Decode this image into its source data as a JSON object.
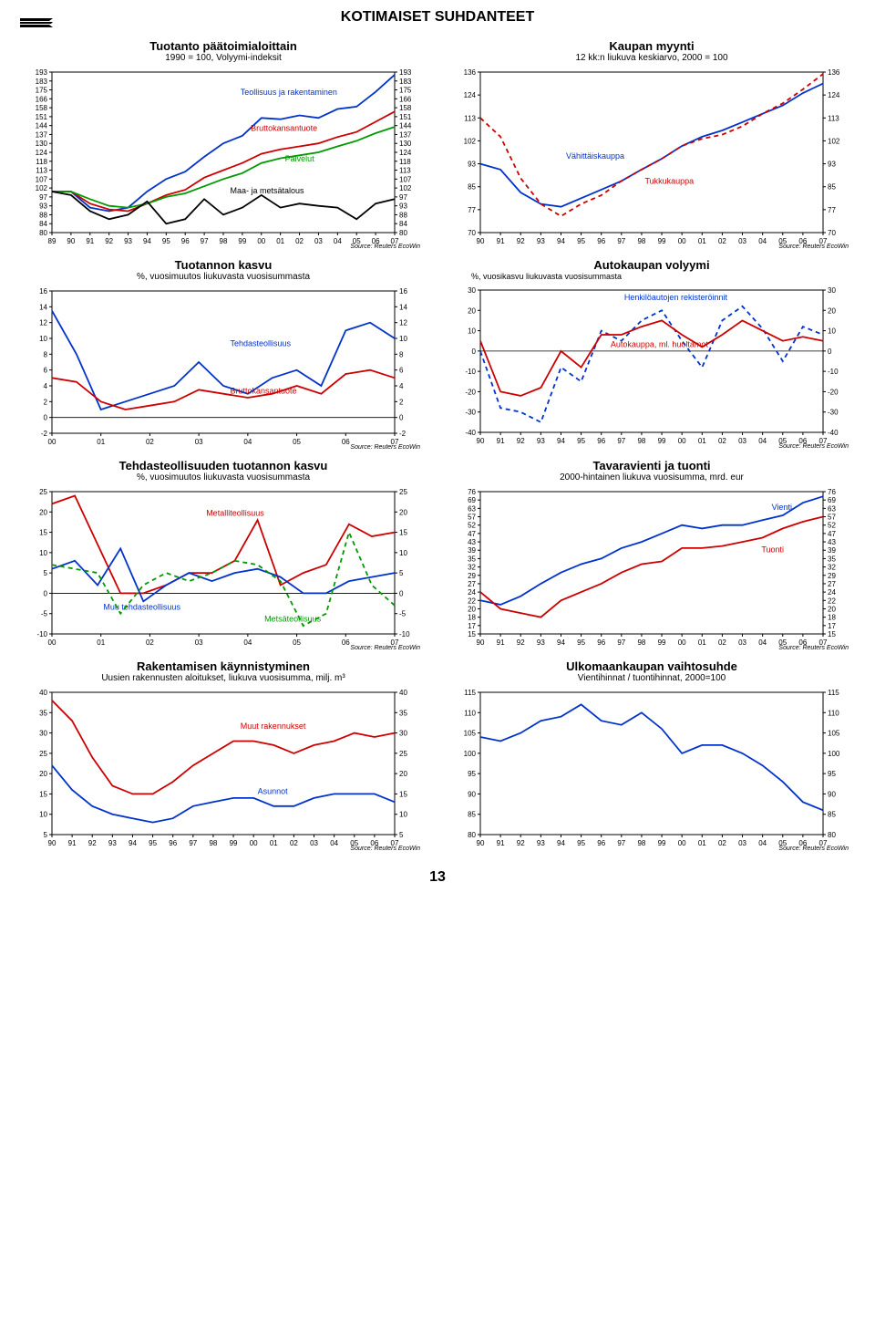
{
  "page_title": "KOTIMAISET SUHDANTEET",
  "page_number": "13",
  "source_text": "Source: Reuters EcoWin",
  "colors": {
    "blue": "#0033cc",
    "red": "#cc0000",
    "green": "#009900",
    "black": "#000000",
    "grid": "#000000",
    "bg": "#ffffff"
  },
  "charts": [
    {
      "id": "tuotanto",
      "title": "Tuotanto päätoimialoittain",
      "subtitle": "1990 = 100, Volyymi-indeksit",
      "x_years": [
        "89",
        "90",
        "91",
        "92",
        "93",
        "94",
        "95",
        "96",
        "97",
        "98",
        "99",
        "00",
        "01",
        "02",
        "03",
        "04",
        "05",
        "06",
        "07"
      ],
      "y_ticks": [
        80,
        84,
        88,
        93,
        97,
        102,
        107,
        113,
        118,
        124,
        130,
        137,
        144,
        151,
        158,
        166,
        175,
        183,
        193
      ],
      "ylim": [
        80,
        193
      ],
      "series": [
        {
          "label": "Teollisuus ja rakentaminen",
          "color": "#0033cc",
          "lx": 0.55,
          "ly": 170,
          "data": [
            100,
            100,
            92,
            90,
            92,
            100,
            107,
            112,
            121,
            130,
            136,
            150,
            149,
            152,
            150,
            157,
            159,
            173,
            190
          ]
        },
        {
          "label": "Bruttokansantuote",
          "color": "#cc0000",
          "lx": 0.58,
          "ly": 140,
          "data": [
            100,
            100,
            94,
            91,
            90,
            94,
            98,
            101,
            108,
            113,
            117,
            123,
            126,
            128,
            130,
            135,
            139,
            147,
            155
          ]
        },
        {
          "label": "Palvelut",
          "color": "#009900",
          "lx": 0.68,
          "ly": 118,
          "data": [
            100,
            100,
            96,
            93,
            92,
            94,
            97,
            99,
            103,
            107,
            111,
            117,
            120,
            122,
            124,
            128,
            132,
            138,
            143
          ]
        },
        {
          "label": "Maa- ja metsätalous",
          "color": "#000000",
          "lx": 0.52,
          "ly": 99,
          "data": [
            100,
            98,
            90,
            86,
            88,
            95,
            84,
            86,
            96,
            88,
            92,
            98,
            92,
            94,
            93,
            92,
            86,
            94,
            96
          ]
        }
      ]
    },
    {
      "id": "kaupan",
      "title": "Kaupan myynti",
      "subtitle": "12 kk:n liukuva keskiarvo, 2000 = 100",
      "x_years": [
        "90",
        "91",
        "92",
        "93",
        "94",
        "95",
        "96",
        "97",
        "98",
        "99",
        "00",
        "01",
        "02",
        "03",
        "04",
        "05",
        "06",
        "07"
      ],
      "y_ticks": [
        70,
        77,
        85,
        93,
        102,
        113,
        124,
        136
      ],
      "ylim": [
        70,
        136
      ],
      "series": [
        {
          "label": "Vähittäiskauppa",
          "color": "#0033cc",
          "lx": 0.25,
          "ly": 95,
          "data": [
            93,
            91,
            83,
            79,
            78,
            81,
            84,
            87,
            91,
            95,
            100,
            104,
            107,
            111,
            115,
            119,
            125,
            130
          ]
        },
        {
          "label": "Tukkukauppa",
          "color": "#cc0000",
          "lx": 0.48,
          "ly": 86,
          "dashed": true,
          "data": [
            113,
            104,
            88,
            79,
            75,
            79,
            82,
            87,
            91,
            95,
            100,
            103,
            105,
            109,
            115,
            120,
            127,
            135
          ]
        }
      ]
    },
    {
      "id": "kasvu",
      "title": "Tuotannon kasvu",
      "subtitle": "%, vuosimuutos liukuvasta vuosisummasta",
      "x_years": [
        "00",
        "01",
        "02",
        "03",
        "04",
        "05",
        "06",
        "07"
      ],
      "y_ticks": [
        -2,
        0,
        2,
        4,
        6,
        8,
        10,
        12,
        14,
        16
      ],
      "ylim": [
        -2,
        16
      ],
      "series": [
        {
          "label": "Tehdasteollisuus",
          "color": "#0033cc",
          "lx": 0.52,
          "ly": 9,
          "data": [
            13.5,
            8,
            1,
            2,
            3,
            4,
            7,
            4,
            3,
            5,
            6,
            4,
            11,
            12,
            10
          ]
        },
        {
          "label": "Bruttokansantuote",
          "color": "#cc0000",
          "lx": 0.52,
          "ly": 3,
          "data": [
            5,
            4.5,
            2,
            1,
            1.5,
            2,
            3.5,
            3,
            2.5,
            3,
            4,
            3,
            5.5,
            6,
            5
          ]
        }
      ]
    },
    {
      "id": "autokaupan",
      "title": "Autokaupan volyymi",
      "subtitle": "%, vuosikasvu liukuvasta vuosisummasta",
      "sub_pos": "left",
      "x_years": [
        "90",
        "91",
        "92",
        "93",
        "94",
        "95",
        "96",
        "97",
        "98",
        "99",
        "00",
        "01",
        "02",
        "03",
        "04",
        "05",
        "06",
        "07"
      ],
      "y_ticks": [
        -40,
        -30,
        -20,
        -10,
        0,
        10,
        20,
        30
      ],
      "ylim": [
        -40,
        30
      ],
      "series": [
        {
          "label": "Henkilöautojen rekisteröinnit",
          "color": "#0033cc",
          "lx": 0.42,
          "ly": 25,
          "dashed": true,
          "data": [
            0,
            -28,
            -30,
            -35,
            -8,
            -15,
            10,
            5,
            15,
            20,
            5,
            -8,
            15,
            22,
            11,
            -5,
            12,
            8
          ]
        },
        {
          "label": "Autokauppa, ml. huoltamot",
          "color": "#cc0000",
          "lx": 0.38,
          "ly": 2,
          "data": [
            5,
            -20,
            -22,
            -18,
            0,
            -8,
            8,
            8,
            12,
            15,
            8,
            2,
            8,
            15,
            10,
            5,
            7,
            5
          ]
        }
      ]
    },
    {
      "id": "tehdas",
      "title": "Tehdasteollisuuden tuotannon kasvu",
      "subtitle": "%, vuosimuutos liukuvasta vuosisummasta",
      "x_years": [
        "00",
        "01",
        "02",
        "03",
        "04",
        "05",
        "06",
        "07"
      ],
      "y_ticks": [
        -10,
        -5,
        0,
        5,
        10,
        15,
        20,
        25
      ],
      "ylim": [
        -10,
        25
      ],
      "series": [
        {
          "label": "Metalliteollisuus",
          "color": "#cc0000",
          "lx": 0.45,
          "ly": 19,
          "data": [
            22,
            24,
            12,
            0,
            0,
            2,
            5,
            5,
            8,
            18,
            2,
            5,
            7,
            17,
            14,
            15
          ]
        },
        {
          "label": "Muu tehdasteollisuus",
          "color": "#0033cc",
          "lx": 0.15,
          "ly": -4,
          "data": [
            6,
            8,
            2,
            11,
            -2,
            2,
            5,
            3,
            5,
            6,
            4,
            0,
            0,
            3,
            4,
            5
          ]
        },
        {
          "label": "Metsäteollisuus",
          "color": "#009900",
          "lx": 0.62,
          "ly": -7,
          "dashed": true,
          "data": [
            7,
            6,
            5,
            -5,
            2,
            5,
            3,
            5,
            8,
            7,
            3,
            -8,
            -5,
            15,
            2,
            -3
          ]
        }
      ]
    },
    {
      "id": "tavaravienti",
      "title": "Tavaravienti ja tuonti",
      "subtitle": "2000-hintainen liukuva vuosisumma, mrd. eur",
      "x_years": [
        "90",
        "91",
        "92",
        "93",
        "94",
        "95",
        "96",
        "97",
        "98",
        "99",
        "00",
        "01",
        "02",
        "03",
        "04",
        "05",
        "06",
        "07"
      ],
      "y_ticks": [
        15,
        17,
        18,
        20,
        22,
        24,
        27,
        29,
        32,
        35,
        39,
        43,
        47,
        52,
        57,
        63,
        69,
        76
      ],
      "ylim": [
        15,
        76
      ],
      "series": [
        {
          "label": "Vienti",
          "color": "#0033cc",
          "lx": 0.85,
          "ly": 62,
          "data": [
            22,
            21,
            23,
            27,
            30,
            33,
            35,
            40,
            43,
            47,
            52,
            50,
            52,
            52,
            55,
            58,
            67,
            72
          ]
        },
        {
          "label": "Tuonti",
          "color": "#cc0000",
          "lx": 0.82,
          "ly": 38,
          "data": [
            24,
            20,
            19,
            18,
            22,
            24,
            27,
            30,
            33,
            34,
            40,
            40,
            41,
            43,
            45,
            50,
            54,
            57
          ]
        }
      ]
    },
    {
      "id": "rakentamisen",
      "title": "Rakentamisen käynnistyminen",
      "subtitle": "Uusien rakennusten aloitukset, liukuva vuosisumma, milj. m³",
      "x_years": [
        "90",
        "91",
        "92",
        "93",
        "94",
        "95",
        "96",
        "97",
        "98",
        "99",
        "00",
        "01",
        "02",
        "03",
        "04",
        "05",
        "06",
        "07"
      ],
      "y_ticks": [
        5,
        10,
        15,
        20,
        25,
        30,
        35,
        40
      ],
      "ylim": [
        5,
        40
      ],
      "series": [
        {
          "label": "Muut rakennukset",
          "color": "#cc0000",
          "lx": 0.55,
          "ly": 31,
          "data": [
            38,
            33,
            24,
            17,
            15,
            15,
            18,
            22,
            25,
            28,
            28,
            27,
            25,
            27,
            28,
            30,
            29,
            30
          ]
        },
        {
          "label": "Asunnot",
          "color": "#0033cc",
          "lx": 0.6,
          "ly": 15,
          "data": [
            22,
            16,
            12,
            10,
            9,
            8,
            9,
            12,
            13,
            14,
            14,
            12,
            12,
            14,
            15,
            15,
            15,
            13
          ]
        }
      ]
    },
    {
      "id": "vaihtosuhde",
      "title": "Ulkomaankaupan vaihtosuhde",
      "subtitle": "Vientihinnat / tuontihinnat, 2000=100",
      "x_years": [
        "90",
        "91",
        "92",
        "93",
        "94",
        "95",
        "96",
        "97",
        "98",
        "99",
        "00",
        "01",
        "02",
        "03",
        "04",
        "05",
        "06",
        "07"
      ],
      "y_ticks": [
        80,
        85,
        90,
        95,
        100,
        105,
        110,
        115
      ],
      "ylim": [
        80,
        115
      ],
      "series": [
        {
          "label": "",
          "color": "#0033cc",
          "data": [
            104,
            103,
            105,
            108,
            109,
            112,
            108,
            107,
            110,
            106,
            100,
            102,
            102,
            100,
            97,
            93,
            88,
            86
          ]
        }
      ]
    }
  ]
}
